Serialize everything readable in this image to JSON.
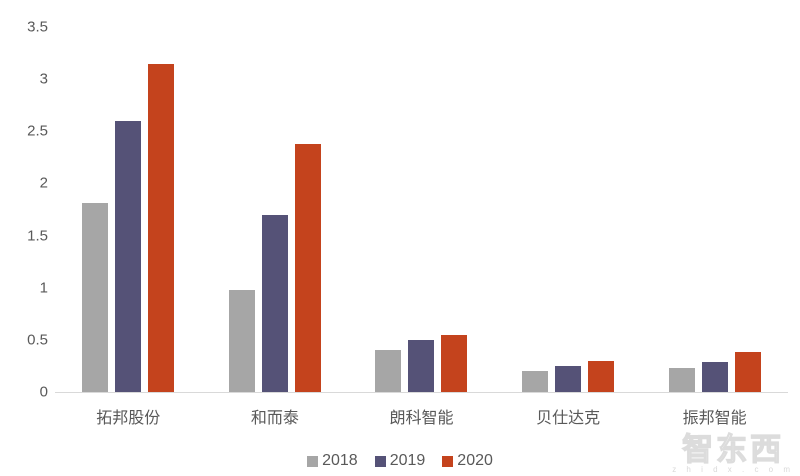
{
  "chart_data": {
    "type": "bar",
    "title": "",
    "xlabel": "",
    "ylabel": "",
    "categories": [
      "拓邦股份",
      "和而泰",
      "朗科智能",
      "贝仕达克",
      "振邦智能"
    ],
    "series": [
      {
        "name": "2018",
        "color": "#a6a6a6",
        "values": [
          1.81,
          0.98,
          0.4,
          0.2,
          0.23
        ]
      },
      {
        "name": "2019",
        "color": "#555277",
        "values": [
          2.6,
          1.7,
          0.5,
          0.25,
          0.29
        ]
      },
      {
        "name": "2020",
        "color": "#c4431d",
        "values": [
          3.15,
          2.38,
          0.55,
          0.3,
          0.38
        ]
      }
    ],
    "ylim": [
      0,
      3.5
    ],
    "yticks": [
      0,
      0.5,
      1,
      1.5,
      2,
      2.5,
      3,
      3.5
    ],
    "grid": false,
    "legend_position": "bottom"
  },
  "colors": {
    "axis_text": "#595959",
    "axis_line": "#d9d9d9",
    "watermark_outline": "#dcdcdc"
  },
  "watermark": {
    "brand": "智东西",
    "site": "z h i d x . c o m"
  }
}
